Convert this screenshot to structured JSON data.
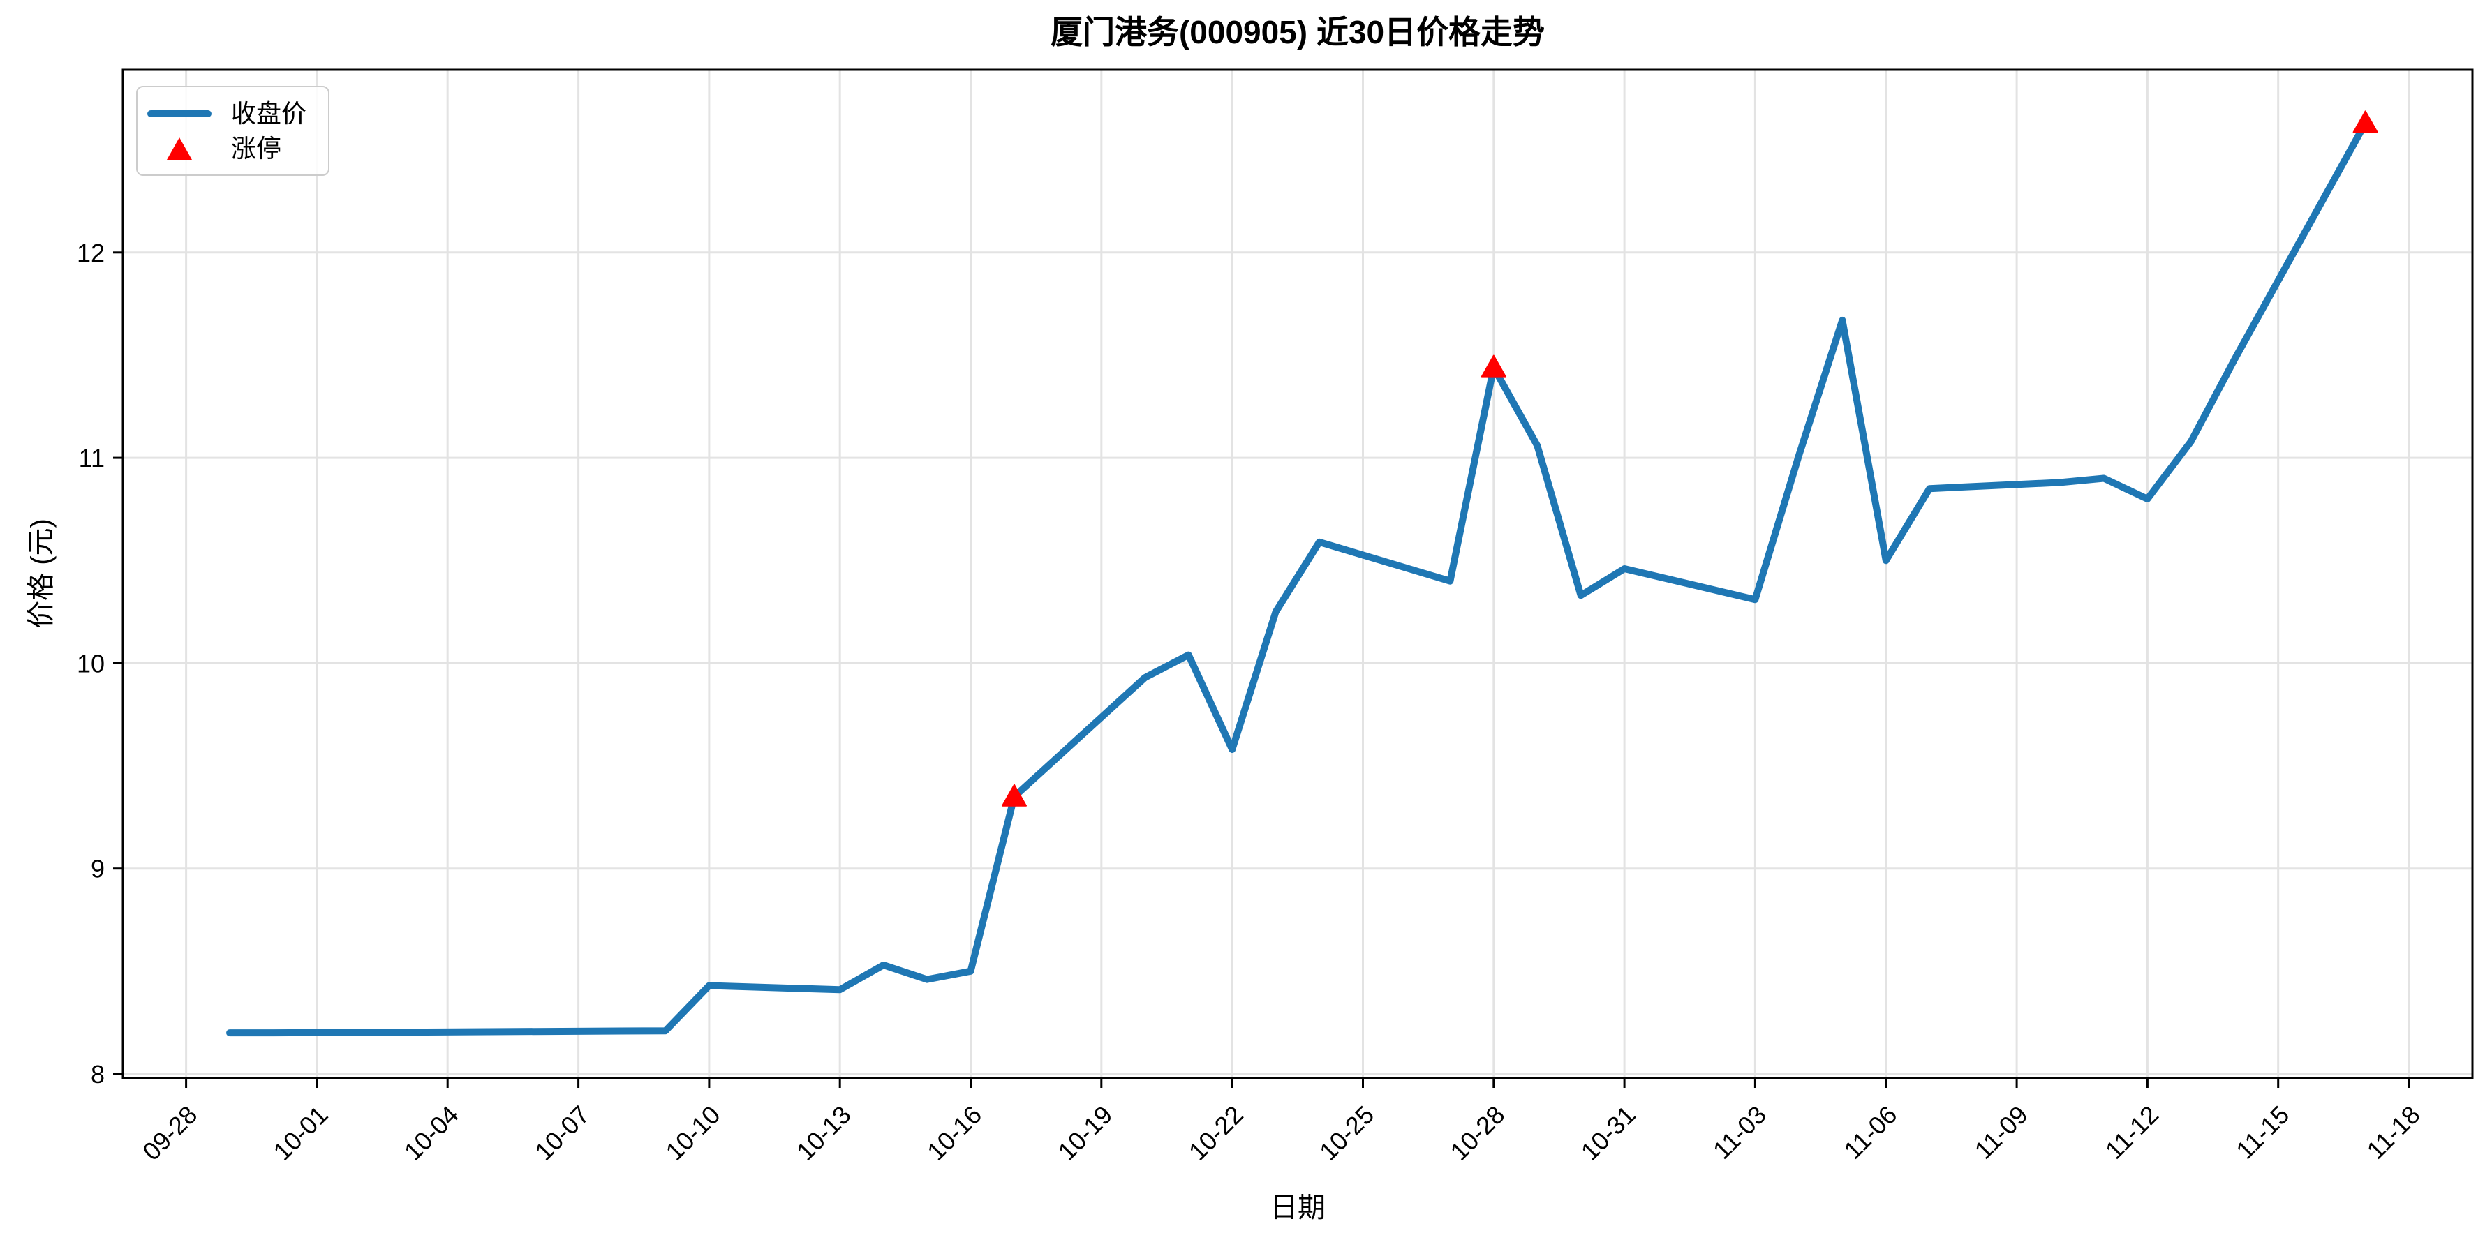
{
  "chart": {
    "background": "#ffffff",
    "accent_line_color": "#1f77b4",
    "limit_up_color": "#ff0000",
    "grid_color": "#e3e3e3"
  },
  "chart_data": {
    "type": "line",
    "title": "厦门港务(000905) 近30日价格走势",
    "xlabel": "日期",
    "ylabel": "价格 (元)",
    "grid": true,
    "legend_position": "upper-left",
    "x": [
      "09-29",
      "09-30",
      "10-09",
      "10-10",
      "10-13",
      "10-14",
      "10-15",
      "10-16",
      "10-17",
      "10-20",
      "10-21",
      "10-22",
      "10-23",
      "10-24",
      "10-27",
      "10-28",
      "10-29",
      "10-30",
      "10-31",
      "11-03",
      "11-04",
      "11-05",
      "11-06",
      "11-07",
      "11-10",
      "11-11",
      "11-12",
      "11-13",
      "11-14",
      "11-17"
    ],
    "series": [
      {
        "name": "收盘价",
        "type": "line",
        "color": "#1f77b4",
        "values": [
          8.2,
          8.2,
          8.21,
          8.43,
          8.41,
          8.53,
          8.46,
          8.5,
          9.35,
          9.93,
          10.04,
          9.58,
          10.25,
          10.59,
          10.4,
          11.44,
          11.06,
          10.33,
          10.46,
          10.31,
          11.01,
          11.67,
          10.5,
          10.85,
          10.88,
          10.9,
          10.8,
          11.08,
          11.48,
          12.63
        ]
      },
      {
        "name": "涨停",
        "type": "scatter",
        "marker": "triangle-up",
        "color": "#ff0000",
        "points": [
          {
            "date": "10-17",
            "price": 9.35
          },
          {
            "date": "10-28",
            "price": 11.44
          },
          {
            "date": "11-17",
            "price": 12.63
          }
        ]
      }
    ],
    "x_tick_labels": [
      "09-28",
      "10-01",
      "10-04",
      "10-07",
      "10-10",
      "10-13",
      "10-16",
      "10-19",
      "10-22",
      "10-25",
      "10-28",
      "10-31",
      "11-03",
      "11-06",
      "11-09",
      "11-12",
      "11-15",
      "11-18"
    ],
    "y_tick_labels": [
      "8",
      "9",
      "10",
      "11",
      "12"
    ],
    "ylim": [
      7.98,
      12.89
    ]
  }
}
